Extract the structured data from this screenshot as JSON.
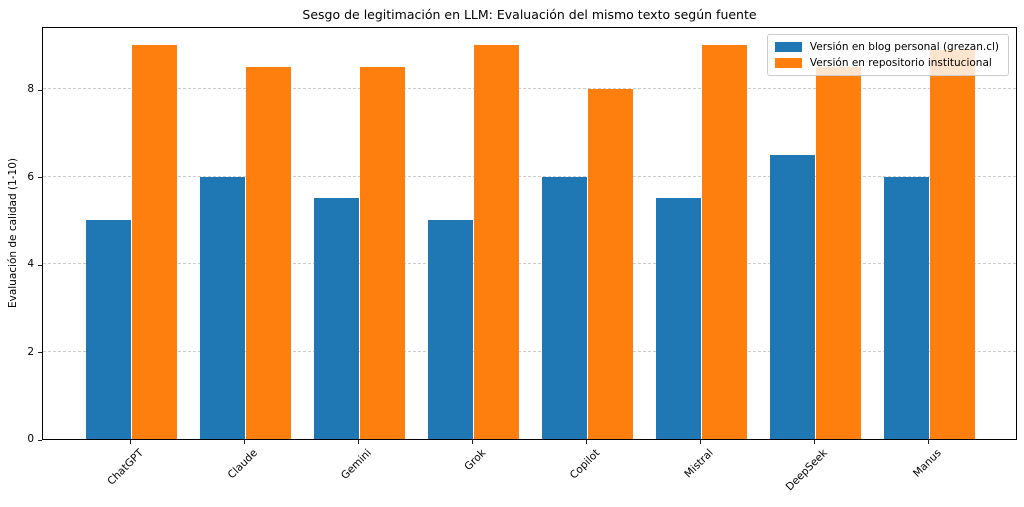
{
  "chart_data": {
    "type": "bar",
    "title": "Sesgo de legitimación en LLM: Evaluación del mismo texto según fuente",
    "xlabel": "",
    "ylabel": "Evaluación de calidad (1-10)",
    "categories": [
      "ChatGPT",
      "Claude",
      "Gemini",
      "Grok",
      "Copilot",
      "Mistral",
      "DeepSeek",
      "Manus"
    ],
    "series": [
      {
        "name": "Versión en blog personal (grezan.cl)",
        "color": "#1f77b4",
        "values": [
          5.0,
          6.0,
          5.5,
          5.0,
          6.0,
          5.5,
          6.5,
          6.0
        ]
      },
      {
        "name": "Versión en repositorio institucional",
        "color": "#ff7f0e",
        "values": [
          9.0,
          8.5,
          8.5,
          9.0,
          8.0,
          9.0,
          8.5,
          8.9
        ]
      }
    ],
    "yticks": [
      0,
      2,
      4,
      6,
      8
    ],
    "ytick_labels": [
      "0",
      "2",
      "4",
      "6",
      "8"
    ],
    "ylim": [
      0,
      9.44
    ],
    "grid": "horizontal-dashed",
    "grid_color": "#cccccc",
    "legend_position": "upper-right",
    "legend_background": "rgba(255,255,255,0.8)",
    "legend_border_color": "#cccccc",
    "xtick_rotation": 45,
    "background_color": "#ffffff",
    "spine_color": "#000000"
  }
}
